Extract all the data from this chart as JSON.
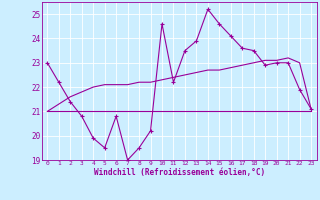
{
  "xlabel": "Windchill (Refroidissement éolien,°C)",
  "bg_color": "#cceeff",
  "line_color": "#990099",
  "grid_color": "#ffffff",
  "xlim": [
    -0.5,
    23.5
  ],
  "ylim": [
    19,
    25.5
  ],
  "yticks": [
    19,
    20,
    21,
    22,
    23,
    24,
    25
  ],
  "xticks": [
    0,
    1,
    2,
    3,
    4,
    5,
    6,
    7,
    8,
    9,
    10,
    11,
    12,
    13,
    14,
    15,
    16,
    17,
    18,
    19,
    20,
    21,
    22,
    23
  ],
  "series1_x": [
    0,
    1,
    2,
    3,
    4,
    5,
    6,
    7,
    8,
    9,
    10,
    11,
    12,
    13,
    14,
    15,
    16,
    17,
    18,
    19,
    20,
    21,
    22,
    23
  ],
  "series1_y": [
    23.0,
    22.2,
    21.4,
    20.8,
    19.9,
    19.5,
    20.8,
    19.0,
    19.5,
    20.2,
    24.6,
    22.2,
    23.5,
    23.9,
    25.2,
    24.6,
    24.1,
    23.6,
    23.5,
    22.9,
    23.0,
    23.0,
    21.9,
    21.1
  ],
  "series2_x": [
    0,
    1,
    2,
    3,
    4,
    5,
    6,
    7,
    8,
    9,
    10,
    11,
    12,
    13,
    14,
    15,
    16,
    17,
    18,
    19,
    20,
    21,
    22,
    23
  ],
  "series2_y": [
    21.0,
    21.0,
    21.0,
    21.0,
    21.0,
    21.0,
    21.0,
    21.0,
    21.0,
    21.0,
    21.0,
    21.0,
    21.0,
    21.0,
    21.0,
    21.0,
    21.0,
    21.0,
    21.0,
    21.0,
    21.0,
    21.0,
    21.0,
    21.0
  ],
  "series3_x": [
    0,
    1,
    2,
    3,
    4,
    5,
    6,
    7,
    8,
    9,
    10,
    11,
    12,
    13,
    14,
    15,
    16,
    17,
    18,
    19,
    20,
    21,
    22,
    23
  ],
  "series3_y": [
    21.0,
    21.3,
    21.6,
    21.8,
    22.0,
    22.1,
    22.1,
    22.1,
    22.2,
    22.2,
    22.3,
    22.4,
    22.5,
    22.6,
    22.7,
    22.7,
    22.8,
    22.9,
    23.0,
    23.1,
    23.1,
    23.2,
    23.0,
    21.1
  ]
}
